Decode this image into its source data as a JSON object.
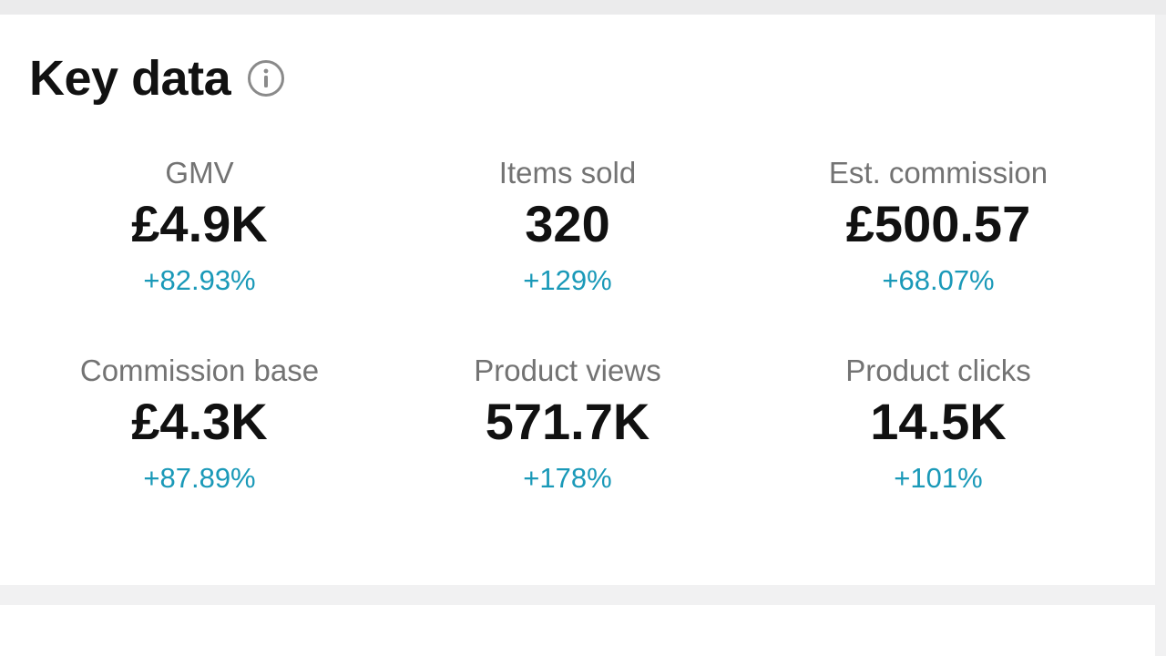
{
  "card": {
    "title": "Key data"
  },
  "metrics": [
    {
      "label": "GMV",
      "value": "£4.9K",
      "change": "+82.93%"
    },
    {
      "label": "Items sold",
      "value": "320",
      "change": "+129%"
    },
    {
      "label": "Est. commission",
      "value": "£500.57",
      "change": "+68.07%"
    },
    {
      "label": "Commission base",
      "value": "£4.3K",
      "change": "+87.89%"
    },
    {
      "label": "Product views",
      "value": "571.7K",
      "change": "+178%"
    },
    {
      "label": "Product clicks",
      "value": "14.5K",
      "change": "+101%"
    }
  ],
  "colors": {
    "change_positive": "#1a99b8",
    "label_gray": "#737373",
    "value_black": "#111111"
  },
  "icons": {
    "info": "info-circle-icon"
  }
}
